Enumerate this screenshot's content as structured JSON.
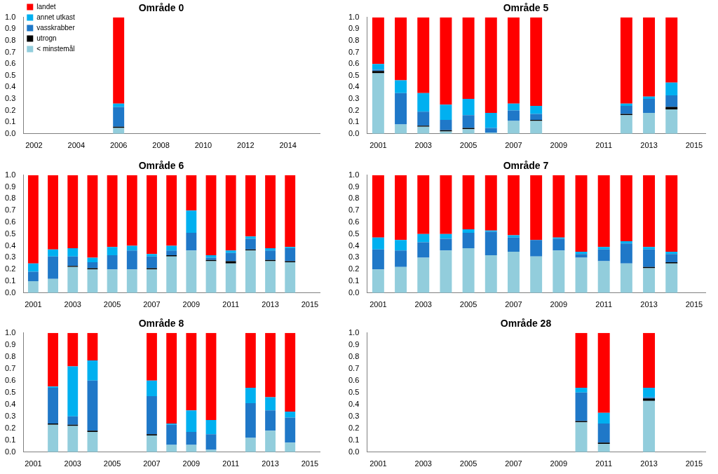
{
  "chart_data": [
    {
      "type": "bar",
      "title": "Område 0",
      "stacked": true,
      "grid": false,
      "legend": "upper left",
      "categories": [
        "2002",
        null,
        "2004",
        null,
        "2006",
        null,
        "2008",
        null,
        "2010",
        null,
        "2012",
        null,
        "2014",
        null
      ],
      "ylim": [
        0,
        1
      ],
      "yticks": [
        {
          "value": 0,
          "label": "0.0"
        },
        {
          "value": 0.1,
          "label": "0.1"
        },
        {
          "value": 0.2,
          "label": "0.2"
        },
        {
          "value": 0.3,
          "label": "0.3"
        },
        {
          "value": 0.4,
          "label": "0.4"
        },
        {
          "value": 0.5,
          "label": "0.5"
        },
        {
          "value": 0.6,
          "label": "0.6"
        },
        {
          "value": 0.7,
          "label": "0.7"
        },
        {
          "value": 0.8,
          "label": "0.8"
        },
        {
          "value": 0.9,
          "label": "0.9"
        },
        {
          "value": 1,
          "label": "1.0"
        }
      ],
      "series": [
        {
          "name": "< minstemål",
          "color": "#92cddc",
          "values": [
            null,
            null,
            null,
            null,
            0.05,
            null,
            null,
            null,
            null,
            null,
            null,
            null,
            null,
            null
          ]
        },
        {
          "name": "utrogn",
          "color": "#000000",
          "values": [
            null,
            null,
            null,
            null,
            0.01,
            null,
            null,
            null,
            null,
            null,
            null,
            null,
            null,
            null
          ]
        },
        {
          "name": "vasskrabber",
          "color": "#1f78c8",
          "values": [
            null,
            null,
            null,
            null,
            0.17,
            null,
            null,
            null,
            null,
            null,
            null,
            null,
            null,
            null
          ]
        },
        {
          "name": "annet utkast",
          "color": "#00b0f0",
          "values": [
            null,
            null,
            null,
            null,
            0.03,
            null,
            null,
            null,
            null,
            null,
            null,
            null,
            null,
            null
          ]
        },
        {
          "name": "landet",
          "color": "#ff0000",
          "values": [
            null,
            null,
            null,
            null,
            0.74,
            null,
            null,
            null,
            null,
            null,
            null,
            null,
            null,
            null
          ]
        }
      ]
    },
    {
      "type": "bar",
      "title": "Område 5",
      "stacked": true,
      "grid": false,
      "categories": [
        "2001",
        null,
        "2003",
        null,
        "2005",
        null,
        "2007",
        null,
        "2009",
        null,
        "2011",
        null,
        "2013",
        null,
        "2015"
      ],
      "ylim": [
        0,
        1
      ],
      "yticks": [
        {
          "value": 0,
          "label": "0.0"
        },
        {
          "value": 0.1,
          "label": "0.1"
        },
        {
          "value": 0.2,
          "label": "0.2"
        },
        {
          "value": 0.3,
          "label": "0.3"
        },
        {
          "value": 0.4,
          "label": "0.4"
        },
        {
          "value": 0.5,
          "label": "0.5"
        },
        {
          "value": 0.6,
          "label": "0.6"
        },
        {
          "value": 0.7,
          "label": "0.7"
        },
        {
          "value": 0.8,
          "label": "0.8"
        },
        {
          "value": 0.9,
          "label": "0.9"
        },
        {
          "value": 1,
          "label": "1.0"
        }
      ],
      "series": [
        {
          "name": "< minstemål",
          "color": "#92cddc",
          "values": [
            0.52,
            0.08,
            0.06,
            0.02,
            0.04,
            0.01,
            0.11,
            0.11,
            null,
            null,
            null,
            0.16,
            0.18,
            0.21,
            null
          ]
        },
        {
          "name": "utrogn",
          "color": "#000000",
          "values": [
            0.02,
            0,
            0.01,
            0.01,
            0.01,
            0,
            0,
            0.01,
            null,
            null,
            null,
            0.01,
            0,
            0.02,
            null
          ]
        },
        {
          "name": "vasskrabber",
          "color": "#1f78c8",
          "values": [
            0.01,
            0.27,
            0.12,
            0.09,
            0.11,
            0.04,
            0.09,
            0.05,
            null,
            null,
            null,
            0.07,
            0.12,
            0.1,
            null
          ]
        },
        {
          "name": "annet utkast",
          "color": "#00b0f0",
          "values": [
            0.05,
            0.11,
            0.16,
            0.13,
            0.14,
            0.13,
            0.06,
            0.07,
            null,
            null,
            null,
            0.02,
            0.02,
            0.11,
            null
          ]
        },
        {
          "name": "landet",
          "color": "#ff0000",
          "values": [
            0.4,
            0.54,
            0.65,
            0.75,
            0.7,
            0.82,
            0.74,
            0.76,
            null,
            null,
            null,
            0.74,
            0.68,
            0.56,
            null
          ]
        }
      ]
    },
    {
      "type": "bar",
      "title": "Område 6",
      "stacked": true,
      "grid": false,
      "categories": [
        "2001",
        null,
        "2003",
        null,
        "2005",
        null,
        "2007",
        null,
        "2009",
        null,
        "2011",
        null,
        "2013",
        null,
        "2015"
      ],
      "ylim": [
        0,
        1
      ],
      "yticks": [
        {
          "value": 0,
          "label": "0.0"
        },
        {
          "value": 0.1,
          "label": "0.1"
        },
        {
          "value": 0.2,
          "label": "0.2"
        },
        {
          "value": 0.3,
          "label": "0.3"
        },
        {
          "value": 0.4,
          "label": "0.4"
        },
        {
          "value": 0.5,
          "label": "0.5"
        },
        {
          "value": 0.6,
          "label": "0.6"
        },
        {
          "value": 0.7,
          "label": "0.7"
        },
        {
          "value": 0.8,
          "label": "0.8"
        },
        {
          "value": 0.9,
          "label": "0.9"
        },
        {
          "value": 1,
          "label": "1.0"
        }
      ],
      "series": [
        {
          "name": "< minstemål",
          "color": "#92cddc",
          "values": [
            0.1,
            0.12,
            0.22,
            0.2,
            0.2,
            0.2,
            0.2,
            0.31,
            0.36,
            0.27,
            0.25,
            0.36,
            0.27,
            0.26,
            null
          ]
        },
        {
          "name": "utrogn",
          "color": "#000000",
          "values": [
            0,
            0,
            0.01,
            0.01,
            0,
            0,
            0.01,
            0.01,
            0,
            0.01,
            0.02,
            0.01,
            0.01,
            0.01,
            null
          ]
        },
        {
          "name": "vasskrabber",
          "color": "#1f78c8",
          "values": [
            0.08,
            0.19,
            0.08,
            0.05,
            0.12,
            0.16,
            0.1,
            0.04,
            0.15,
            0.02,
            0.07,
            0.09,
            0.08,
            0.11,
            null
          ]
        },
        {
          "name": "annet utkast",
          "color": "#00b0f0",
          "values": [
            0.07,
            0.06,
            0.07,
            0.04,
            0.07,
            0.04,
            0.02,
            0.04,
            0.19,
            0.02,
            0.02,
            0.02,
            0.02,
            0.01,
            null
          ]
        },
        {
          "name": "landet",
          "color": "#ff0000",
          "values": [
            0.75,
            0.63,
            0.62,
            0.7,
            0.61,
            0.6,
            0.67,
            0.6,
            0.3,
            0.68,
            0.64,
            0.52,
            0.62,
            0.61,
            null
          ]
        }
      ]
    },
    {
      "type": "bar",
      "title": "Område 7",
      "stacked": true,
      "grid": false,
      "categories": [
        "2001",
        null,
        "2003",
        null,
        "2005",
        null,
        "2007",
        null,
        "2009",
        null,
        "2011",
        null,
        "2013",
        null,
        "2015"
      ],
      "ylim": [
        0,
        1
      ],
      "yticks": [
        {
          "value": 0,
          "label": "0.0"
        },
        {
          "value": 0.1,
          "label": "0.1"
        },
        {
          "value": 0.2,
          "label": "0.2"
        },
        {
          "value": 0.3,
          "label": "0.3"
        },
        {
          "value": 0.4,
          "label": "0.4"
        },
        {
          "value": 0.5,
          "label": "0.5"
        },
        {
          "value": 0.6,
          "label": "0.6"
        },
        {
          "value": 0.7,
          "label": "0.7"
        },
        {
          "value": 0.8,
          "label": "0.8"
        },
        {
          "value": 0.9,
          "label": "0.9"
        },
        {
          "value": 1,
          "label": "1.0"
        }
      ],
      "series": [
        {
          "name": "< minstemål",
          "color": "#92cddc",
          "values": [
            0.2,
            0.22,
            0.3,
            0.36,
            0.38,
            0.32,
            0.35,
            0.31,
            0.36,
            0.3,
            0.27,
            0.25,
            0.21,
            0.25,
            null
          ]
        },
        {
          "name": "utrogn",
          "color": "#000000",
          "values": [
            0,
            0,
            0,
            0,
            0,
            0,
            0,
            0,
            0,
            0,
            0,
            0,
            0.01,
            0.01,
            null
          ]
        },
        {
          "name": "vasskrabber",
          "color": "#1f78c8",
          "values": [
            0.17,
            0.14,
            0.13,
            0.1,
            0.13,
            0.2,
            0.12,
            0.14,
            0.1,
            0.03,
            0.1,
            0.17,
            0.15,
            0.07,
            null
          ]
        },
        {
          "name": "annet utkast",
          "color": "#00b0f0",
          "values": [
            0.1,
            0.09,
            0.07,
            0.04,
            0.03,
            0.01,
            0.02,
            0,
            0.01,
            0.02,
            0.02,
            0.02,
            0.02,
            0.02,
            null
          ]
        },
        {
          "name": "landet",
          "color": "#ff0000",
          "values": [
            0.53,
            0.55,
            0.5,
            0.5,
            0.46,
            0.47,
            0.51,
            0.55,
            0.53,
            0.65,
            0.61,
            0.56,
            0.61,
            0.65,
            null
          ]
        }
      ]
    },
    {
      "type": "bar",
      "title": "Område 8",
      "stacked": true,
      "grid": false,
      "categories": [
        "2001",
        null,
        "2003",
        null,
        "2005",
        null,
        "2007",
        null,
        "2009",
        null,
        "2011",
        null,
        "2013",
        null,
        "2015"
      ],
      "ylim": [
        0,
        1
      ],
      "yticks": [
        {
          "value": 0,
          "label": "0.0"
        },
        {
          "value": 0.1,
          "label": "0.1"
        },
        {
          "value": 0.2,
          "label": "0.2"
        },
        {
          "value": 0.3,
          "label": "0.3"
        },
        {
          "value": 0.4,
          "label": "0.4"
        },
        {
          "value": 0.5,
          "label": "0.5"
        },
        {
          "value": 0.6,
          "label": "0.6"
        },
        {
          "value": 0.7,
          "label": "0.7"
        },
        {
          "value": 0.8,
          "label": "0.8"
        },
        {
          "value": 0.9,
          "label": "0.9"
        },
        {
          "value": 1,
          "label": "1.0"
        }
      ],
      "series": [
        {
          "name": "< minstemål",
          "color": "#92cddc",
          "values": [
            null,
            0.23,
            0.22,
            0.17,
            null,
            null,
            0.14,
            0.06,
            0.06,
            0.02,
            null,
            0.12,
            0.18,
            0.08,
            null
          ]
        },
        {
          "name": "utrogn",
          "color": "#000000",
          "values": [
            null,
            0.01,
            0.01,
            0.01,
            null,
            null,
            0.01,
            0,
            0,
            0,
            null,
            0,
            0,
            0,
            null
          ]
        },
        {
          "name": "vasskrabber",
          "color": "#1f78c8",
          "values": [
            null,
            0.3,
            0.07,
            0.42,
            null,
            null,
            0.32,
            0.17,
            0.11,
            0.13,
            null,
            0.29,
            0.17,
            0.21,
            null
          ]
        },
        {
          "name": "annet utkast",
          "color": "#00b0f0",
          "values": [
            null,
            0.01,
            0.42,
            0.17,
            null,
            null,
            0.13,
            0.01,
            0.18,
            0.12,
            null,
            0.13,
            0.11,
            0.05,
            null
          ]
        },
        {
          "name": "landet",
          "color": "#ff0000",
          "values": [
            null,
            0.45,
            0.28,
            0.23,
            null,
            null,
            0.4,
            0.76,
            0.65,
            0.73,
            null,
            0.46,
            0.54,
            0.66,
            null
          ]
        }
      ]
    },
    {
      "type": "bar",
      "title": "Område 28",
      "stacked": true,
      "grid": false,
      "categories": [
        "2001",
        null,
        "2003",
        null,
        "2005",
        null,
        "2007",
        null,
        "2009",
        null,
        "2011",
        null,
        "2013",
        null,
        "2015"
      ],
      "ylim": [
        0,
        1
      ],
      "yticks": [
        {
          "value": 0,
          "label": "0.0"
        },
        {
          "value": 0.1,
          "label": "0.1"
        },
        {
          "value": 0.2,
          "label": "0.2"
        },
        {
          "value": 0.3,
          "label": "0.3"
        },
        {
          "value": 0.4,
          "label": "0.4"
        },
        {
          "value": 0.5,
          "label": "0.5"
        },
        {
          "value": 0.6,
          "label": "0.6"
        },
        {
          "value": 0.7,
          "label": "0.7"
        },
        {
          "value": 0.8,
          "label": "0.8"
        },
        {
          "value": 0.9,
          "label": "0.9"
        },
        {
          "value": 1,
          "label": "1.0"
        }
      ],
      "series": [
        {
          "name": "< minstemål",
          "color": "#92cddc",
          "values": [
            null,
            null,
            null,
            null,
            null,
            null,
            null,
            null,
            null,
            0.25,
            0.07,
            null,
            0.43,
            null,
            null
          ]
        },
        {
          "name": "utrogn",
          "color": "#000000",
          "values": [
            null,
            null,
            null,
            null,
            null,
            null,
            null,
            null,
            null,
            0.01,
            0.01,
            null,
            0.02,
            null,
            null
          ]
        },
        {
          "name": "vasskrabber",
          "color": "#1f78c8",
          "values": [
            null,
            null,
            null,
            null,
            null,
            null,
            null,
            null,
            null,
            0.24,
            0.16,
            null,
            0.01,
            null,
            null
          ]
        },
        {
          "name": "annet utkast",
          "color": "#00b0f0",
          "values": [
            null,
            null,
            null,
            null,
            null,
            null,
            null,
            null,
            null,
            0.04,
            0.09,
            null,
            0.08,
            null,
            null
          ]
        },
        {
          "name": "landet",
          "color": "#ff0000",
          "values": [
            null,
            null,
            null,
            null,
            null,
            null,
            null,
            null,
            null,
            0.46,
            0.67,
            null,
            0.46,
            null,
            null
          ]
        }
      ]
    }
  ]
}
